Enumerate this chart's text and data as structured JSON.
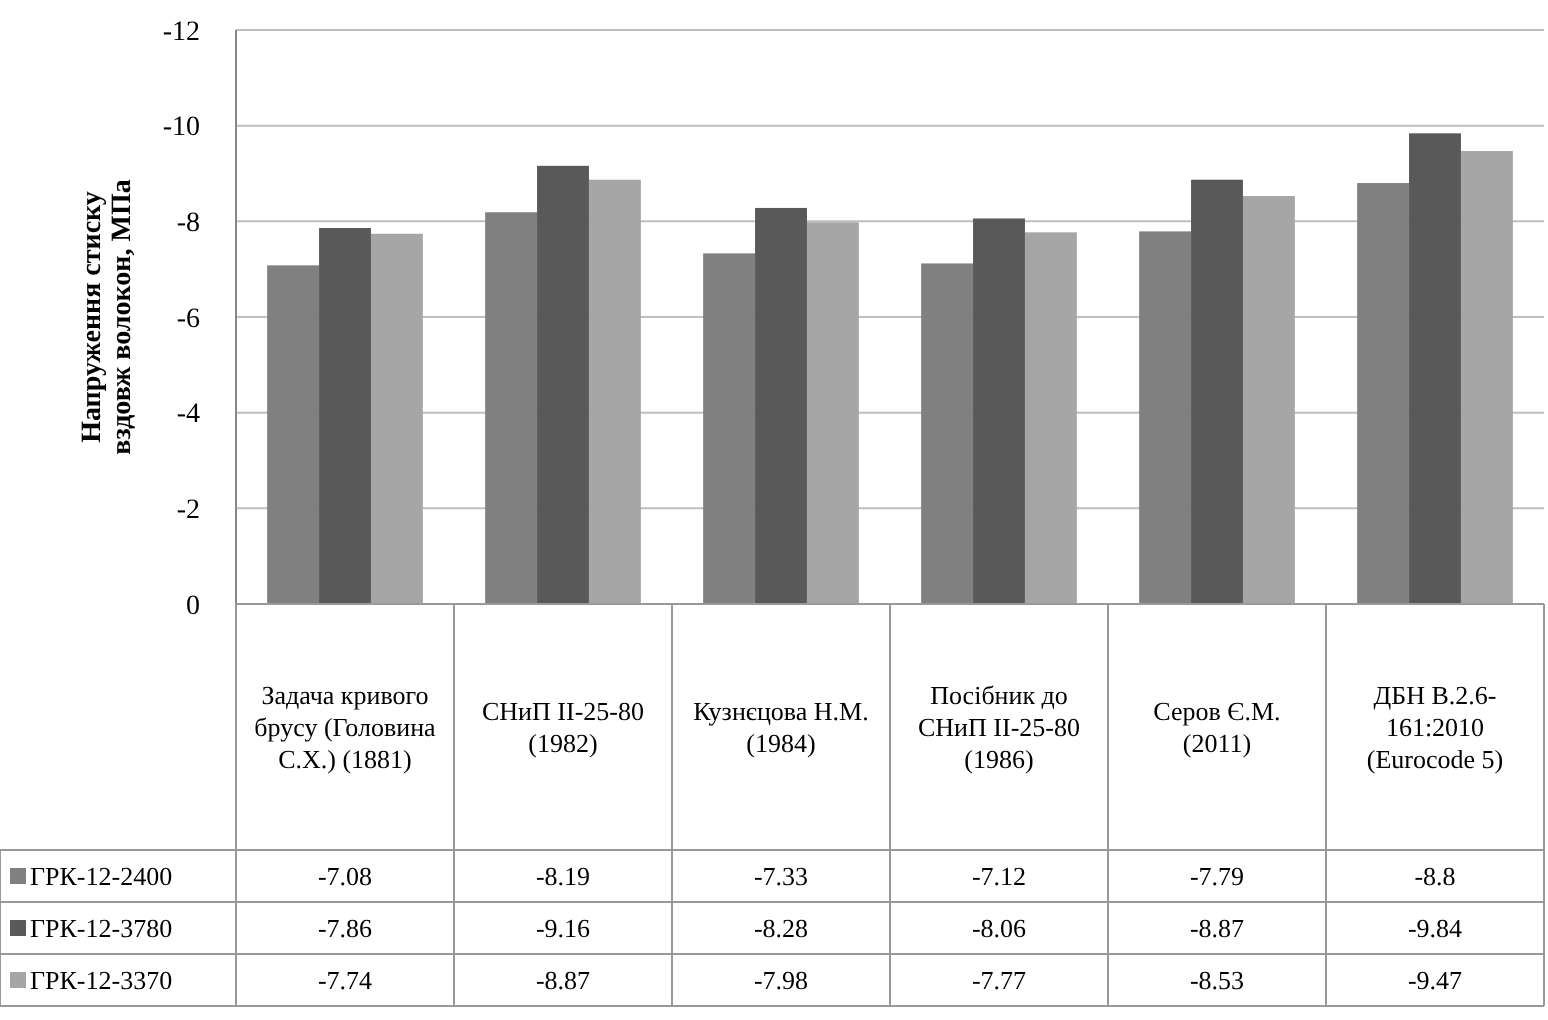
{
  "chart_data": {
    "type": "bar",
    "ylabel": "Напруження стиску вздовж волокон, МПа",
    "categories": [
      "Задача кривого брусу (Головина С.Х.) (1881)",
      "СНиП II-25-80 (1982)",
      "Кузнєцова Н.М. (1984)",
      "Посібник до СНиП II-25-80 (1986)",
      "Серов Є.М. (2011)",
      "ДБН В.2.6-161:2010 (Eurocode 5)"
    ],
    "series": [
      {
        "name": "ГРК-12-2400",
        "color": "#808080",
        "values": [
          -7.08,
          -8.19,
          -7.33,
          -7.12,
          -7.79,
          -8.8
        ]
      },
      {
        "name": "ГРК-12-3780",
        "color": "#595959",
        "values": [
          -7.86,
          -9.16,
          -8.28,
          -8.06,
          -8.87,
          -9.84
        ]
      },
      {
        "name": "ГРК-12-3370",
        "color": "#a6a6a6",
        "values": [
          -7.74,
          -8.87,
          -7.98,
          -7.77,
          -8.53,
          -9.47
        ]
      }
    ],
    "ylim": [
      0,
      -12
    ],
    "yticks": [
      0,
      -2,
      -4,
      -6,
      -8,
      -10,
      -12
    ],
    "grid": "y",
    "data_labels": true,
    "legend": "bottom left"
  }
}
